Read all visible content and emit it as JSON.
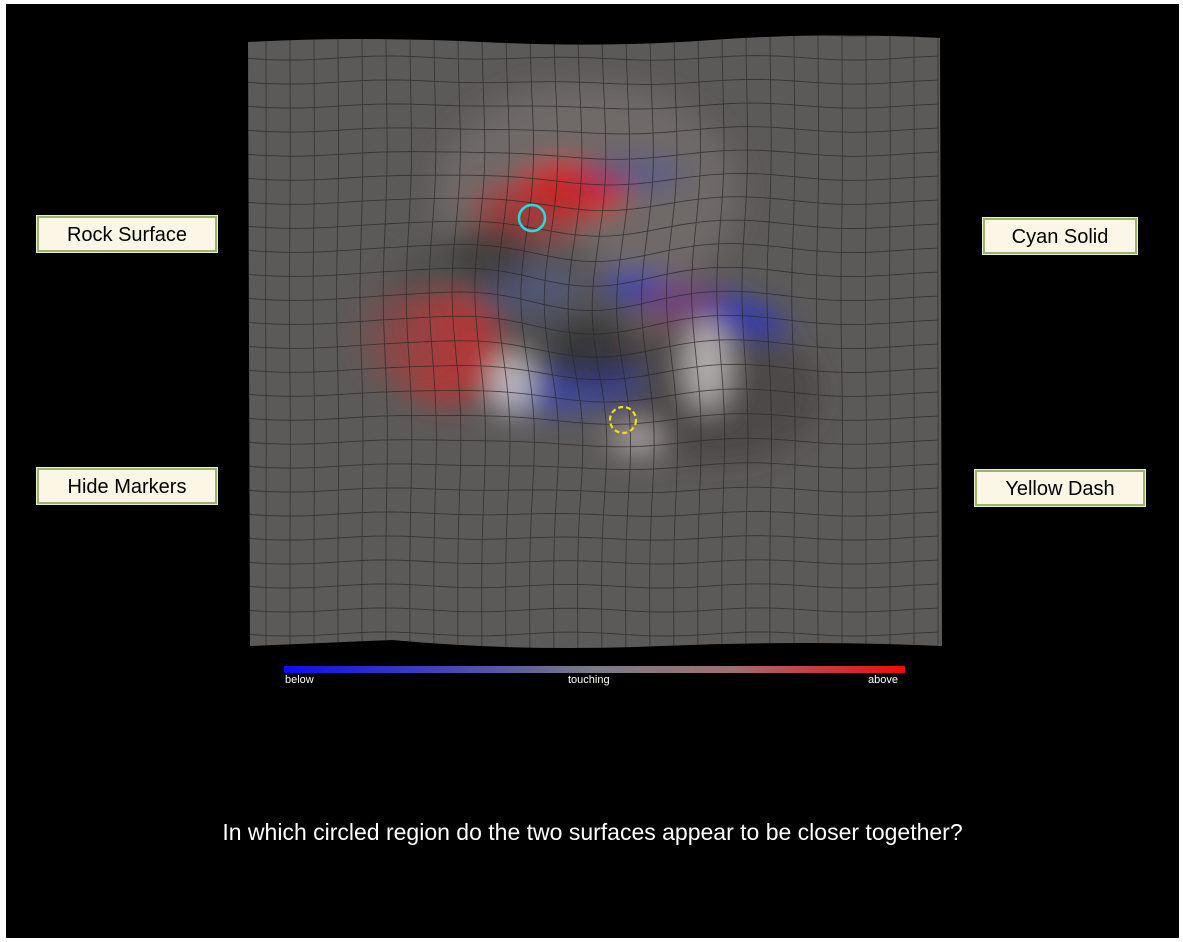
{
  "buttons": {
    "rock_surface": "Rock Surface",
    "hide_markers": "Hide Markers",
    "cyan_solid": "Cyan Solid",
    "yellow_dash": "Yellow Dash"
  },
  "colorbar": {
    "below_label": "below",
    "touching_label": "touching",
    "above_label": "above",
    "colors": [
      "#0a0ff0",
      "#7a7a88",
      "#f00a0a"
    ]
  },
  "markers": {
    "cyan_color": "#22dde0",
    "yellow_color": "#f5e000"
  },
  "question": "In which circled region do the two surfaces appear to be closer together?"
}
